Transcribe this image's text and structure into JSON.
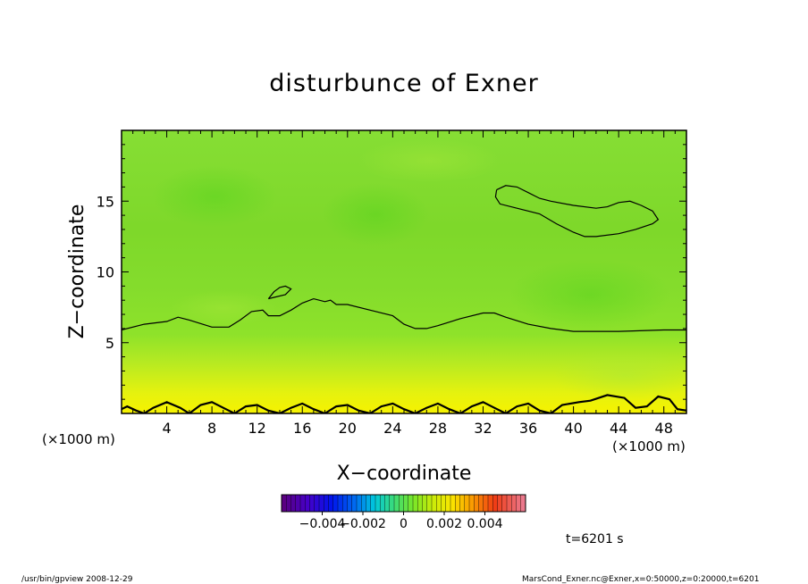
{
  "chart_data": {
    "type": "heatmap",
    "title": "disturbunce of Exner",
    "xlabel": "X−coordinate",
    "ylabel": "Z−coordinate",
    "x_unit_left": "(×1000 m)",
    "x_unit_right": "(×1000 m)",
    "xlim": [
      0,
      50
    ],
    "ylim": [
      0,
      20
    ],
    "x_ticks": [
      4,
      8,
      12,
      16,
      20,
      24,
      28,
      32,
      36,
      40,
      44,
      48
    ],
    "y_ticks": [
      5,
      10,
      15
    ],
    "colorbar": {
      "range": [
        -0.006,
        0.006
      ],
      "tick_labels": [
        {
          "value": -0.004,
          "label": "−0.004"
        },
        {
          "value": -0.002,
          "label": "−0.002"
        },
        {
          "value": 0,
          "label": "0"
        },
        {
          "value": 0.002,
          "label": "0.002"
        },
        {
          "value": 0.004,
          "label": "0.004"
        }
      ]
    },
    "field_description_levels": {
      "top": 0.0012,
      "middle": 0.0014,
      "bottom": 0.0035
    },
    "contours": [
      {
        "name": "main",
        "points": [
          [
            0,
            5.9
          ],
          [
            2,
            6.3
          ],
          [
            4,
            6.5
          ],
          [
            5,
            6.8
          ],
          [
            6,
            6.6
          ],
          [
            8,
            6.1
          ],
          [
            9.5,
            6.1
          ],
          [
            10.5,
            6.6
          ],
          [
            11.5,
            7.2
          ],
          [
            12.5,
            7.3
          ],
          [
            13,
            6.9
          ],
          [
            14,
            6.9
          ],
          [
            15,
            7.3
          ],
          [
            16,
            7.8
          ],
          [
            17,
            8.1
          ],
          [
            18,
            7.9
          ],
          [
            18.5,
            8.0
          ],
          [
            19,
            7.7
          ],
          [
            20,
            7.7
          ],
          [
            22,
            7.3
          ],
          [
            24,
            6.9
          ],
          [
            25,
            6.3
          ],
          [
            26,
            6.0
          ],
          [
            27,
            6.0
          ],
          [
            28,
            6.2
          ],
          [
            30,
            6.7
          ],
          [
            32,
            7.1
          ],
          [
            33,
            7.1
          ],
          [
            34,
            6.8
          ],
          [
            36,
            6.3
          ],
          [
            38,
            6.0
          ],
          [
            40,
            5.8
          ],
          [
            44,
            5.8
          ],
          [
            48,
            5.9
          ],
          [
            50,
            5.9
          ]
        ]
      },
      {
        "name": "small-loop",
        "points": [
          [
            13,
            8.1
          ],
          [
            13.5,
            8.6
          ],
          [
            14,
            8.9
          ],
          [
            14.5,
            9.0
          ],
          [
            15,
            8.8
          ],
          [
            14.5,
            8.4
          ],
          [
            13.5,
            8.2
          ],
          [
            13,
            8.1
          ]
        ]
      },
      {
        "name": "upper-loop",
        "points": [
          [
            33.2,
            15.8
          ],
          [
            34,
            16.1
          ],
          [
            35,
            16.0
          ],
          [
            36,
            15.6
          ],
          [
            37,
            15.2
          ],
          [
            38,
            15.0
          ],
          [
            40,
            14.7
          ],
          [
            42,
            14.5
          ],
          [
            43,
            14.6
          ],
          [
            44,
            14.9
          ],
          [
            45,
            15.0
          ],
          [
            46,
            14.7
          ],
          [
            47,
            14.3
          ],
          [
            47.5,
            13.7
          ],
          [
            47,
            13.4
          ],
          [
            45.5,
            13.0
          ],
          [
            44,
            12.7
          ],
          [
            42,
            12.5
          ],
          [
            41,
            12.5
          ],
          [
            40,
            12.8
          ],
          [
            38.5,
            13.4
          ],
          [
            37,
            14.1
          ],
          [
            35,
            14.5
          ],
          [
            33.5,
            14.8
          ],
          [
            33.1,
            15.3
          ],
          [
            33.2,
            15.8
          ]
        ]
      },
      {
        "name": "bottom-wave",
        "points": [
          [
            0,
            0.3
          ],
          [
            0.5,
            0.5
          ],
          [
            1.3,
            0.2
          ],
          [
            2,
            0
          ],
          [
            2.8,
            0.4
          ],
          [
            4,
            0.8
          ],
          [
            5.2,
            0.4
          ],
          [
            6,
            0
          ],
          [
            7,
            0.6
          ],
          [
            8,
            0.8
          ],
          [
            9,
            0.4
          ],
          [
            10,
            0
          ],
          [
            11,
            0.5
          ],
          [
            12,
            0.6
          ],
          [
            13,
            0.2
          ],
          [
            14,
            0
          ],
          [
            15,
            0.4
          ],
          [
            16,
            0.7
          ],
          [
            17,
            0.3
          ],
          [
            18,
            0
          ],
          [
            19,
            0.5
          ],
          [
            20,
            0.6
          ],
          [
            21,
            0.2
          ],
          [
            22,
            0
          ],
          [
            23,
            0.5
          ],
          [
            24,
            0.7
          ],
          [
            25,
            0.3
          ],
          [
            26,
            0
          ],
          [
            27,
            0.4
          ],
          [
            28,
            0.7
          ],
          [
            29,
            0.3
          ],
          [
            30,
            0
          ],
          [
            31,
            0.5
          ],
          [
            32,
            0.8
          ],
          [
            33,
            0.4
          ],
          [
            34,
            0
          ],
          [
            35,
            0.5
          ],
          [
            36,
            0.7
          ],
          [
            37,
            0.2
          ],
          [
            38,
            0
          ],
          [
            39,
            0.6
          ],
          [
            40.5,
            0.8
          ],
          [
            41.5,
            0.9
          ],
          [
            43,
            1.3
          ],
          [
            44.5,
            1.1
          ],
          [
            45.5,
            0.4
          ],
          [
            46.5,
            0.5
          ],
          [
            47.5,
            1.2
          ],
          [
            48.5,
            1.0
          ],
          [
            49.2,
            0.3
          ],
          [
            50,
            0.2
          ]
        ]
      }
    ],
    "legend": "colorbar-bottom-center",
    "grid": false
  },
  "annotations": {
    "time": "t=6201 s",
    "footer_left": "/usr/bin/gpview   2008-12-29",
    "footer_right": "MarsCond_Exner.nc@Exner,x=0:50000,z=0:20000,t=6201"
  }
}
